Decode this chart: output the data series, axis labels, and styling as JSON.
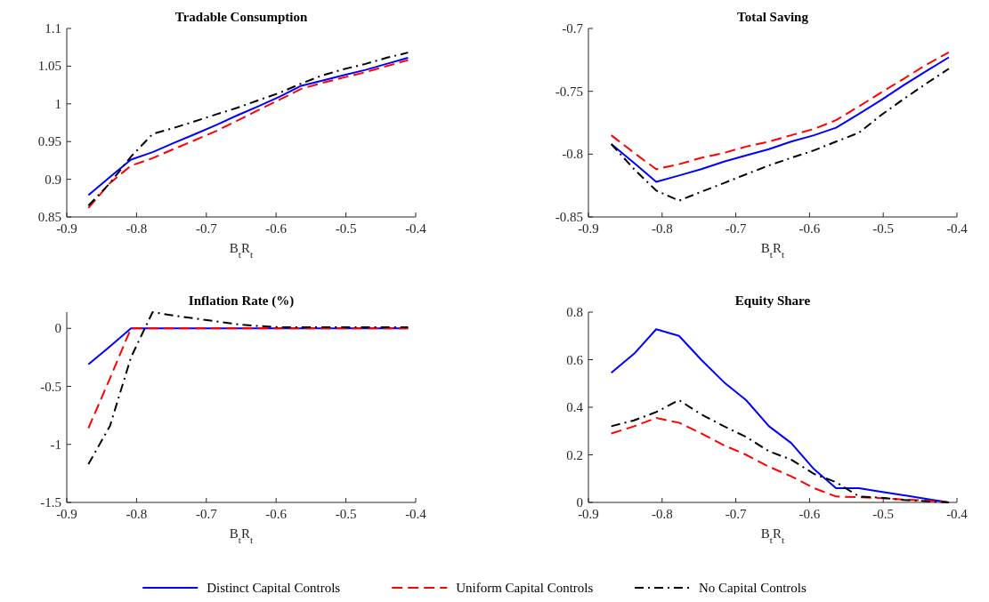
{
  "chart_data": [
    {
      "type": "line",
      "title": "Tradable Consumption",
      "xlabel": "B$_{t}$R$_{t}$",
      "xlim": [
        -0.9,
        -0.4
      ],
      "xticks": [
        -0.9,
        -0.8,
        -0.7,
        -0.6,
        -0.5,
        -0.4
      ],
      "ylim": [
        0.85,
        1.1
      ],
      "yticks": [
        0.85,
        0.9,
        0.95,
        1,
        1.05,
        1.1
      ],
      "grid": false,
      "legend": "bottom",
      "x": [
        -0.869,
        -0.838,
        -0.808,
        -0.777,
        -0.747,
        -0.716,
        -0.686,
        -0.655,
        -0.625,
        -0.594,
        -0.564,
        -0.533,
        -0.503,
        -0.472,
        -0.442,
        -0.411
      ],
      "series": [
        {
          "name": "Distinct Capital Controls",
          "color": "#0000ff",
          "line_style": "solid",
          "values": [
            0.879,
            0.903,
            0.926,
            0.936,
            0.948,
            0.96,
            0.972,
            0.985,
            0.997,
            1.01,
            1.024,
            1.031,
            1.038,
            1.045,
            1.053,
            1.061
          ]
        },
        {
          "name": "Uniform Capital Controls",
          "color": "#ff0000",
          "line_style": "dashed",
          "values": [
            0.862,
            0.895,
            0.918,
            0.928,
            0.94,
            0.952,
            0.964,
            0.978,
            0.992,
            1.006,
            1.02,
            1.028,
            1.035,
            1.042,
            1.05,
            1.058
          ]
        },
        {
          "name": "No Capital Controls",
          "color": "#000000",
          "line_style": "dashdot",
          "values": [
            0.865,
            0.895,
            0.93,
            0.96,
            0.968,
            0.977,
            0.986,
            0.995,
            1.005,
            1.015,
            1.027,
            1.038,
            1.046,
            1.053,
            1.061,
            1.068
          ]
        }
      ]
    },
    {
      "type": "line",
      "title": "Total Saving",
      "xlabel": "B$_{t}$R$_{t}$",
      "xlim": [
        -0.9,
        -0.4
      ],
      "xticks": [
        -0.9,
        -0.8,
        -0.7,
        -0.6,
        -0.5,
        -0.4
      ],
      "ylim": [
        -0.85,
        -0.7
      ],
      "yticks": [
        -0.85,
        -0.8,
        -0.75,
        -0.7
      ],
      "grid": false,
      "x": [
        -0.869,
        -0.838,
        -0.808,
        -0.777,
        -0.747,
        -0.716,
        -0.686,
        -0.655,
        -0.625,
        -0.594,
        -0.564,
        -0.533,
        -0.503,
        -0.472,
        -0.442,
        -0.411
      ],
      "series": [
        {
          "color": "#0000ff",
          "line_style": "solid",
          "values": [
            -0.792,
            -0.807,
            -0.822,
            -0.817,
            -0.812,
            -0.806,
            -0.801,
            -0.796,
            -0.79,
            -0.785,
            -0.779,
            -0.768,
            -0.757,
            -0.745,
            -0.734,
            -0.723
          ]
        },
        {
          "color": "#ff0000",
          "line_style": "dashed",
          "values": [
            -0.785,
            -0.799,
            -0.812,
            -0.808,
            -0.803,
            -0.799,
            -0.794,
            -0.79,
            -0.785,
            -0.78,
            -0.773,
            -0.762,
            -0.751,
            -0.74,
            -0.729,
            -0.719
          ]
        },
        {
          "color": "#000000",
          "line_style": "dashdot",
          "values": [
            -0.792,
            -0.812,
            -0.829,
            -0.837,
            -0.83,
            -0.823,
            -0.816,
            -0.809,
            -0.803,
            -0.797,
            -0.79,
            -0.783,
            -0.769,
            -0.756,
            -0.744,
            -0.732
          ]
        }
      ]
    },
    {
      "type": "line",
      "title": "Inflation Rate (%)",
      "xlabel": "B$_{t}$R$_{t}$",
      "xlim": [
        -0.9,
        -0.4
      ],
      "xticks": [
        -0.9,
        -0.8,
        -0.7,
        -0.6,
        -0.5,
        -0.4
      ],
      "ylim": [
        -1.5,
        0.14
      ],
      "yticks": [
        -1.5,
        -1,
        -0.5,
        0
      ],
      "grid": false,
      "x": [
        -0.869,
        -0.838,
        -0.808,
        -0.777,
        -0.747,
        -0.716,
        -0.686,
        -0.655,
        -0.625,
        -0.594,
        -0.564,
        -0.533,
        -0.503,
        -0.472,
        -0.442,
        -0.411
      ],
      "series": [
        {
          "color": "#0000ff",
          "line_style": "solid",
          "values": [
            -0.31,
            -0.155,
            0,
            0,
            0,
            0,
            0,
            0,
            0,
            0,
            0,
            0,
            0,
            0,
            0,
            0
          ]
        },
        {
          "color": "#ff0000",
          "line_style": "dashed",
          "values": [
            -0.86,
            -0.43,
            0,
            0,
            0,
            0,
            0,
            0,
            0,
            0,
            0,
            0,
            0,
            0,
            0,
            0
          ]
        },
        {
          "color": "#000000",
          "line_style": "dashdot",
          "values": [
            -1.17,
            -0.84,
            -0.25,
            0.14,
            0.11,
            0.085,
            0.06,
            0.035,
            0.02,
            0.01,
            0.01,
            0.01,
            0.01,
            0.01,
            0.01,
            0.01
          ]
        }
      ]
    },
    {
      "type": "line",
      "title": "Equity Share",
      "xlabel": "B$_{t}$R$_{t}$",
      "xlim": [
        -0.9,
        -0.4
      ],
      "xticks": [
        -0.9,
        -0.8,
        -0.7,
        -0.6,
        -0.5,
        -0.4
      ],
      "ylim": [
        0,
        0.8
      ],
      "yticks": [
        0,
        0.2,
        0.4,
        0.6,
        0.8
      ],
      "grid": false,
      "x": [
        -0.869,
        -0.838,
        -0.808,
        -0.777,
        -0.747,
        -0.716,
        -0.686,
        -0.655,
        -0.625,
        -0.594,
        -0.564,
        -0.533,
        -0.503,
        -0.472,
        -0.442,
        -0.411
      ],
      "series": [
        {
          "color": "#0000ff",
          "line_style": "solid",
          "values": [
            0.545,
            0.625,
            0.728,
            0.7,
            0.6,
            0.505,
            0.43,
            0.32,
            0.25,
            0.14,
            0.06,
            0.06,
            0.045,
            0.03,
            0.015,
            0
          ]
        },
        {
          "color": "#ff0000",
          "line_style": "dashed",
          "values": [
            0.29,
            0.32,
            0.355,
            0.335,
            0.29,
            0.24,
            0.2,
            0.15,
            0.11,
            0.06,
            0.025,
            0.022,
            0.018,
            0.012,
            0.008,
            0
          ]
        },
        {
          "color": "#000000",
          "line_style": "dashdot",
          "values": [
            0.32,
            0.345,
            0.38,
            0.43,
            0.37,
            0.32,
            0.275,
            0.215,
            0.18,
            0.12,
            0.085,
            0.025,
            0.02,
            0.01,
            0.005,
            0
          ]
        }
      ]
    }
  ]
}
